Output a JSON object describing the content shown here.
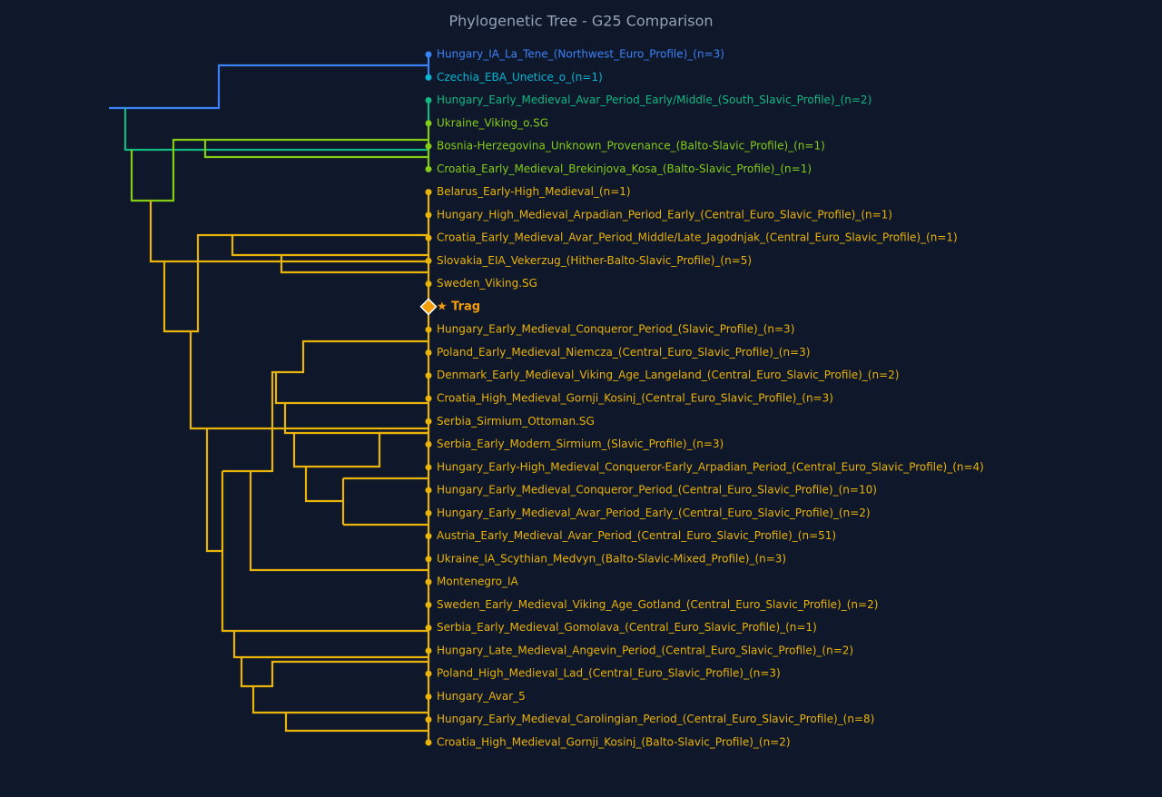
{
  "title": "Phylogenetic Tree - G25 Comparison",
  "leaves": [
    {
      "label": "Hungary_IA_La_Tene_(Northwest_Euro_Profile)_(n=3)",
      "color": "#3b82f6"
    },
    {
      "label": "Czechia_EBA_Unetice_o_(n=1)",
      "color": "#06b6d4"
    },
    {
      "label": "Hungary_Early_Medieval_Avar_Period_Early/Middle_(South_Slavic_Profile)_(n=2)",
      "color": "#10b981"
    },
    {
      "label": "Ukraine_Viking_o.SG",
      "color": "#84cc16"
    },
    {
      "label": "Bosnia-Herzegovina_Unknown_Provenance_(Balto-Slavic_Profile)_(n=1)",
      "color": "#84cc16"
    },
    {
      "label": "Croatia_Early_Medieval_Brekinjova_Kosa_(Balto-Slavic_Profile)_(n=1)",
      "color": "#84cc16"
    },
    {
      "label": "Belarus_Early-High_Medieval_(n=1)",
      "color": "#eab308"
    },
    {
      "label": "Hungary_High_Medieval_Arpadian_Period_Early_(Central_Euro_Slavic_Profile)_(n=1)",
      "color": "#eab308"
    },
    {
      "label": "Croatia_Early_Medieval_Avar_Period_Middle/Late_Jagodnjak_(Central_Euro_Slavic_Profile)_(n=1)",
      "color": "#eab308"
    },
    {
      "label": "Slovakia_EIA_Vekerzug_(Hither-Balto-Slavic_Profile)_(n=5)",
      "color": "#eab308"
    },
    {
      "label": "Sweden_Viking.SG",
      "color": "#eab308"
    },
    {
      "label": "★ Trag",
      "color": "#f59e0b",
      "target": true
    },
    {
      "label": "Hungary_Early_Medieval_Conqueror_Period_(Slavic_Profile)_(n=3)",
      "color": "#eab308"
    },
    {
      "label": "Poland_Early_Medieval_Niemcza_(Central_Euro_Slavic_Profile)_(n=3)",
      "color": "#eab308"
    },
    {
      "label": "Denmark_Early_Medieval_Viking_Age_Langeland_(Central_Euro_Slavic_Profile)_(n=2)",
      "color": "#eab308"
    },
    {
      "label": "Croatia_High_Medieval_Gornji_Kosinj_(Central_Euro_Slavic_Profile)_(n=3)",
      "color": "#eab308"
    },
    {
      "label": "Serbia_Sirmium_Ottoman.SG",
      "color": "#eab308"
    },
    {
      "label": "Serbia_Early_Modern_Sirmium_(Slavic_Profile)_(n=3)",
      "color": "#eab308"
    },
    {
      "label": "Hungary_Early-High_Medieval_Conqueror-Early_Arpadian_Period_(Central_Euro_Slavic_Profile)_(n=4)",
      "color": "#eab308"
    },
    {
      "label": "Hungary_Early_Medieval_Conqueror_Period_(Central_Euro_Slavic_Profile)_(n=10)",
      "color": "#eab308"
    },
    {
      "label": "Hungary_Early_Medieval_Avar_Period_Early_(Central_Euro_Slavic_Profile)_(n=2)",
      "color": "#eab308"
    },
    {
      "label": "Austria_Early_Medieval_Avar_Period_(Central_Euro_Slavic_Profile)_(n=51)",
      "color": "#eab308"
    },
    {
      "label": "Ukraine_IA_Scythian_Medvyn_(Balto-Slavic-Mixed_Profile)_(n=3)",
      "color": "#eab308"
    },
    {
      "label": "Montenegro_IA",
      "color": "#eab308"
    },
    {
      "label": "Sweden_Early_Medieval_Viking_Age_Gotland_(Central_Euro_Slavic_Profile)_(n=2)",
      "color": "#eab308"
    },
    {
      "label": "Serbia_Early_Medieval_Gomolava_(Central_Euro_Slavic_Profile)_(n=1)",
      "color": "#eab308"
    },
    {
      "label": "Hungary_Late_Medieval_Angevin_Period_(Central_Euro_Slavic_Profile)_(n=2)",
      "color": "#eab308"
    },
    {
      "label": "Poland_High_Medieval_Lad_(Central_Euro_Slavic_Profile)_(n=3)",
      "color": "#eab308"
    },
    {
      "label": "Hungary_Avar_5",
      "color": "#eab308"
    },
    {
      "label": "Hungary_Early_Medieval_Carolingian_Period_(Central_Euro_Slavic_Profile)_(n=8)",
      "color": "#eab308"
    },
    {
      "label": "Croatia_High_Medieval_Gornji_Kosinj_(Balto-Slavic_Profile)_(n=2)",
      "color": "#eab308"
    }
  ]
}
